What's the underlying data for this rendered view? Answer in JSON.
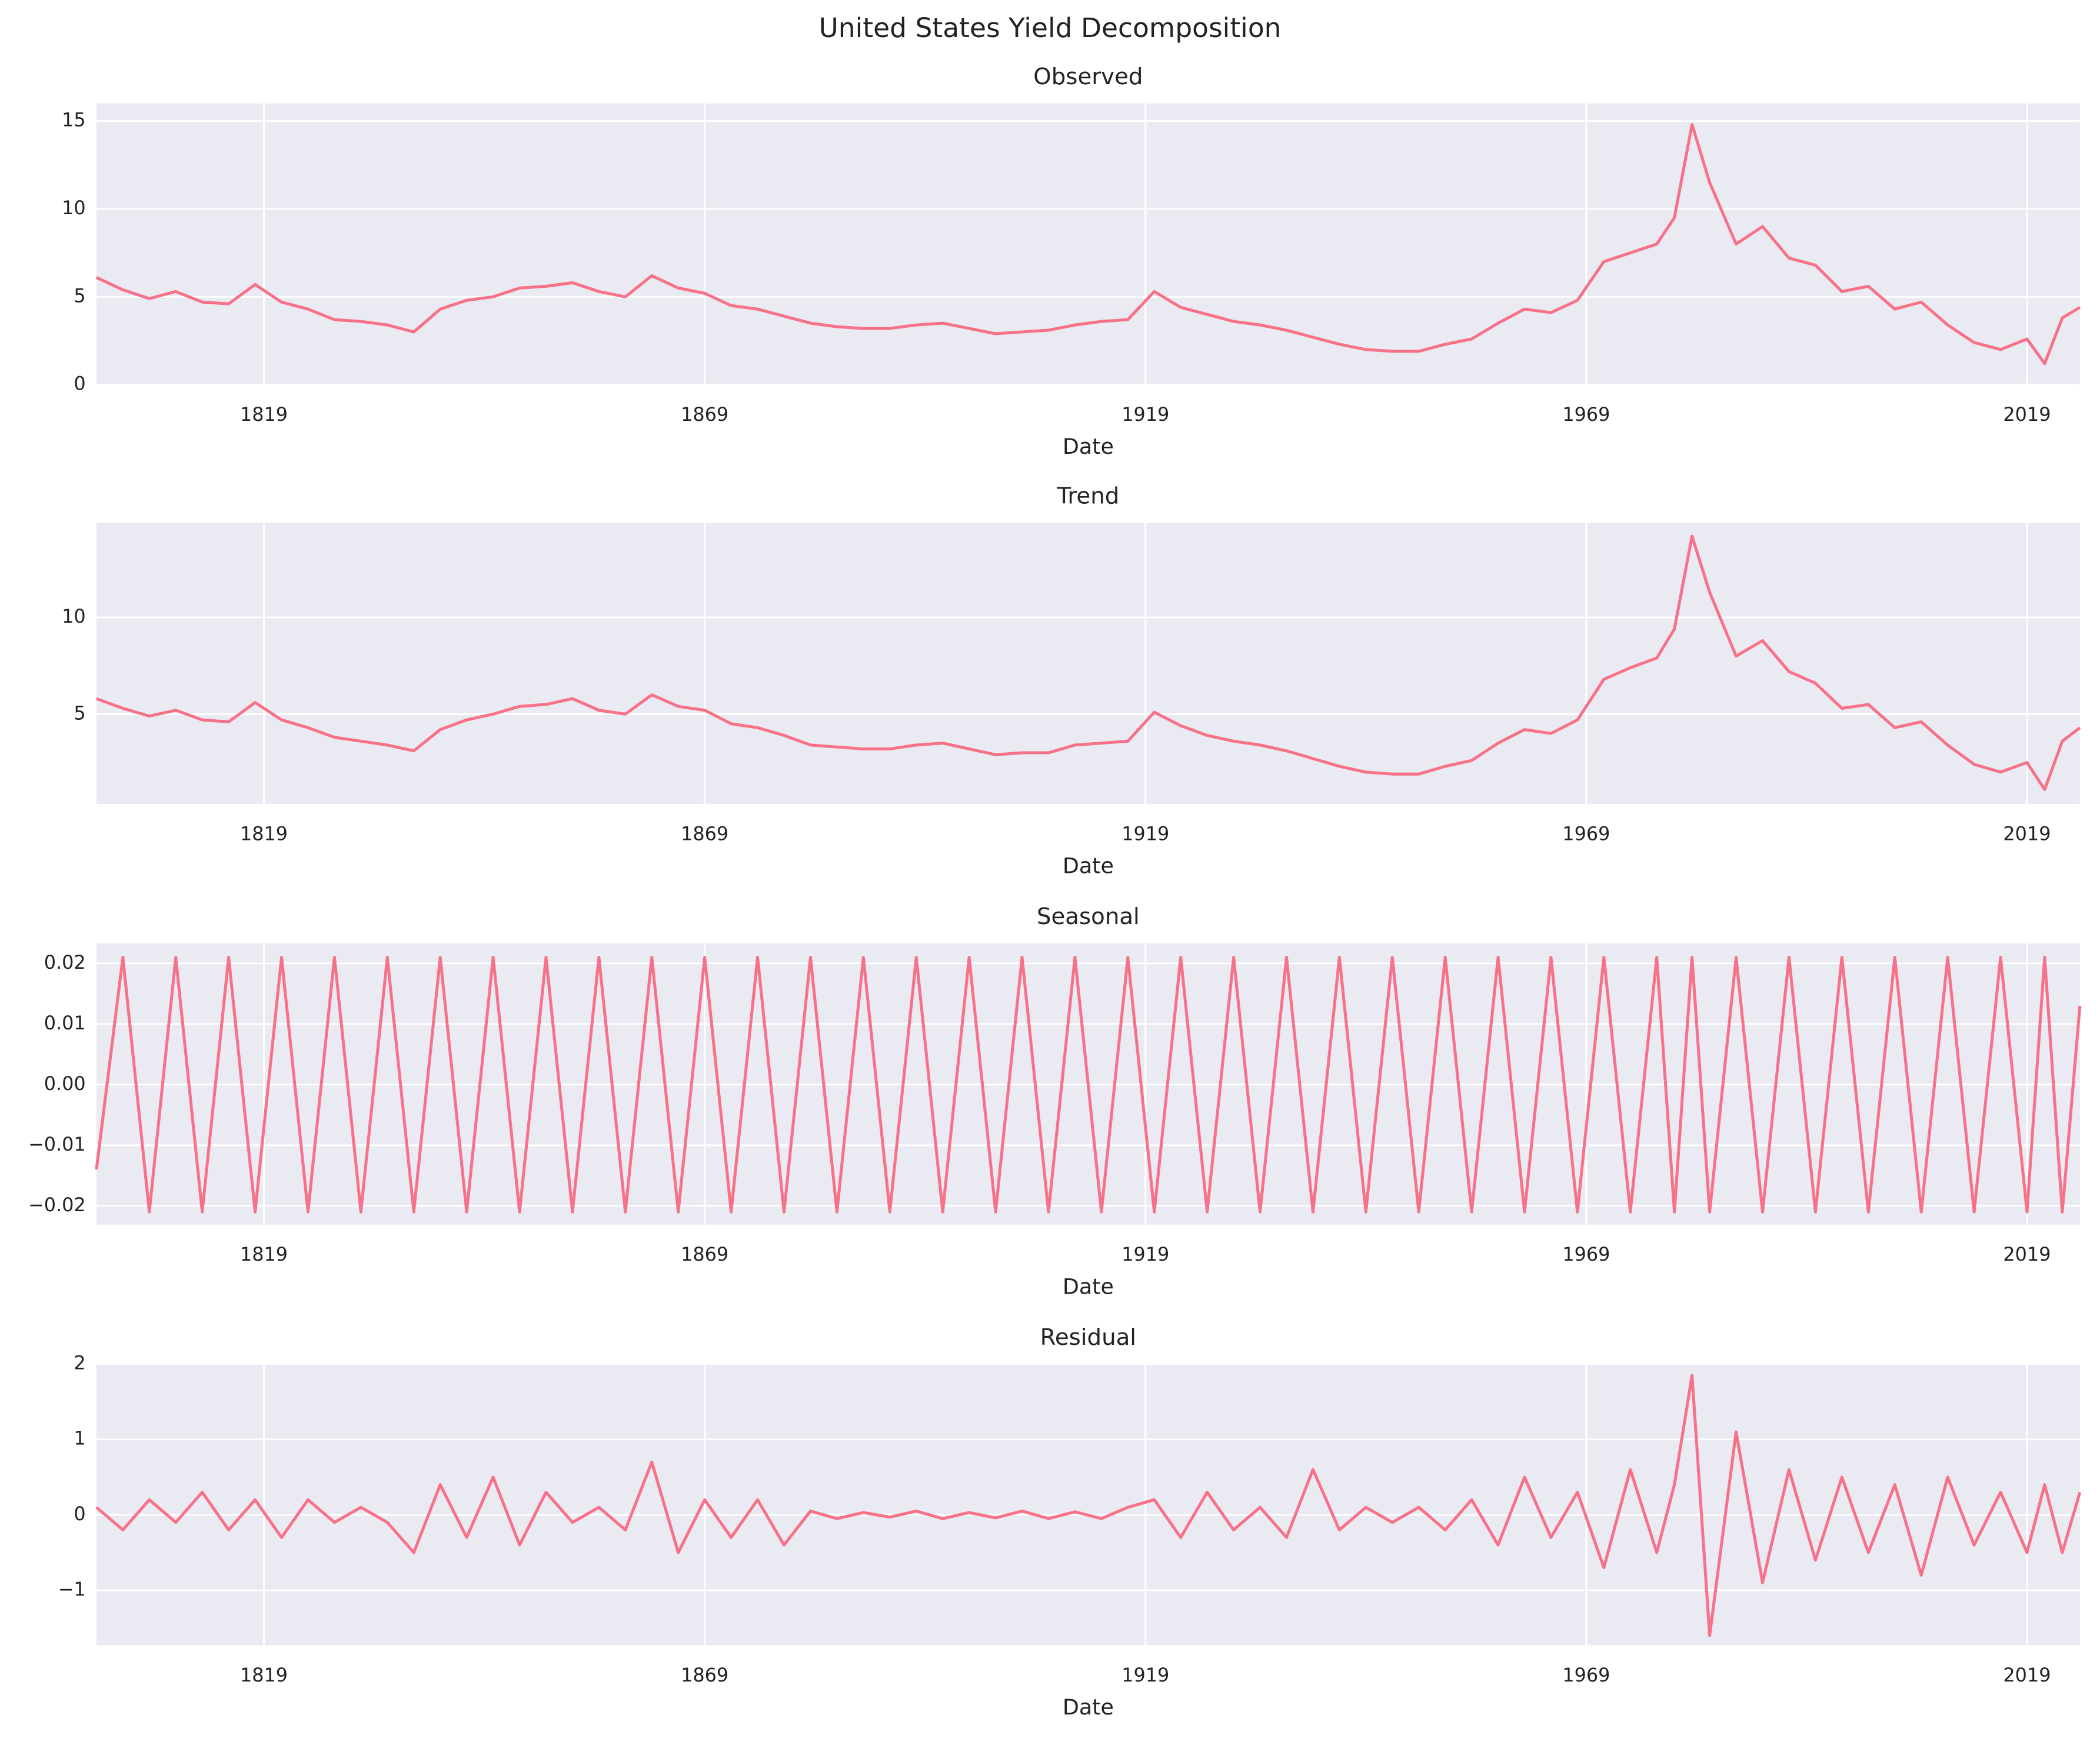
{
  "title": "United States Yield Decomposition",
  "chart_data": [
    {
      "type": "line",
      "title": "Observed",
      "xlabel": "Date",
      "color": "#f77189",
      "grid": true,
      "x": [
        1800,
        1803,
        1806,
        1809,
        1812,
        1815,
        1818,
        1821,
        1824,
        1827,
        1830,
        1833,
        1836,
        1839,
        1842,
        1845,
        1848,
        1851,
        1854,
        1857,
        1860,
        1863,
        1866,
        1869,
        1872,
        1875,
        1878,
        1881,
        1884,
        1887,
        1890,
        1893,
        1896,
        1899,
        1902,
        1905,
        1908,
        1911,
        1914,
        1917,
        1920,
        1923,
        1926,
        1929,
        1932,
        1935,
        1938,
        1941,
        1944,
        1947,
        1950,
        1953,
        1956,
        1959,
        1962,
        1965,
        1968,
        1971,
        1974,
        1977,
        1979,
        1981,
        1983,
        1986,
        1989,
        1992,
        1995,
        1998,
        2001,
        2004,
        2007,
        2010,
        2013,
        2016,
        2019,
        2021,
        2023,
        2025
      ],
      "values": [
        6.1,
        5.4,
        4.9,
        5.3,
        4.7,
        4.6,
        5.7,
        4.7,
        4.3,
        3.7,
        3.6,
        3.4,
        3.0,
        4.3,
        4.8,
        5.0,
        5.5,
        5.6,
        5.8,
        5.3,
        5.0,
        6.2,
        5.5,
        5.2,
        4.5,
        4.3,
        3.9,
        3.5,
        3.3,
        3.2,
        3.2,
        3.4,
        3.5,
        3.2,
        2.9,
        3.0,
        3.1,
        3.4,
        3.6,
        3.7,
        5.3,
        4.4,
        4.0,
        3.6,
        3.4,
        3.1,
        2.7,
        2.3,
        2.0,
        1.9,
        1.9,
        2.3,
        2.6,
        3.5,
        4.3,
        4.1,
        4.8,
        7.0,
        7.5,
        8.0,
        9.5,
        14.8,
        11.5,
        8.0,
        9.0,
        7.2,
        6.8,
        5.3,
        5.6,
        4.3,
        4.7,
        3.4,
        2.4,
        2.0,
        2.6,
        1.2,
        3.8,
        4.4
      ],
      "xlim": [
        1800,
        2025
      ],
      "xticks": [
        1819,
        1869,
        1919,
        1969,
        2019
      ],
      "ylim": [
        0,
        16
      ],
      "yticks": [
        0,
        5,
        10,
        15
      ]
    },
    {
      "type": "line",
      "title": "Trend",
      "xlabel": "Date",
      "color": "#f77189",
      "grid": true,
      "x": [
        1800,
        1803,
        1806,
        1809,
        1812,
        1815,
        1818,
        1821,
        1824,
        1827,
        1830,
        1833,
        1836,
        1839,
        1842,
        1845,
        1848,
        1851,
        1854,
        1857,
        1860,
        1863,
        1866,
        1869,
        1872,
        1875,
        1878,
        1881,
        1884,
        1887,
        1890,
        1893,
        1896,
        1899,
        1902,
        1905,
        1908,
        1911,
        1914,
        1917,
        1920,
        1923,
        1926,
        1929,
        1932,
        1935,
        1938,
        1941,
        1944,
        1947,
        1950,
        1953,
        1956,
        1959,
        1962,
        1965,
        1968,
        1971,
        1974,
        1977,
        1979,
        1981,
        1983,
        1986,
        1989,
        1992,
        1995,
        1998,
        2001,
        2004,
        2007,
        2010,
        2013,
        2016,
        2019,
        2021,
        2023,
        2025
      ],
      "values": [
        5.8,
        5.3,
        4.9,
        5.2,
        4.7,
        4.6,
        5.6,
        4.7,
        4.3,
        3.8,
        3.6,
        3.4,
        3.1,
        4.2,
        4.7,
        5.0,
        5.4,
        5.5,
        5.8,
        5.2,
        5.0,
        6.0,
        5.4,
        5.2,
        4.5,
        4.3,
        3.9,
        3.4,
        3.3,
        3.2,
        3.2,
        3.4,
        3.5,
        3.2,
        2.9,
        3.0,
        3.0,
        3.4,
        3.5,
        3.6,
        5.1,
        4.4,
        3.9,
        3.6,
        3.4,
        3.1,
        2.7,
        2.3,
        2.0,
        1.9,
        1.9,
        2.3,
        2.6,
        3.5,
        4.2,
        4.0,
        4.7,
        6.8,
        7.4,
        7.9,
        9.4,
        14.2,
        11.3,
        8.0,
        8.8,
        7.2,
        6.6,
        5.3,
        5.5,
        4.3,
        4.6,
        3.4,
        2.4,
        2.0,
        2.5,
        1.1,
        3.6,
        4.3
      ],
      "xlim": [
        1800,
        2025
      ],
      "xticks": [
        1819,
        1869,
        1919,
        1969,
        2019
      ],
      "ylim": [
        0.35,
        14.9
      ],
      "yticks": [
        5,
        10
      ]
    },
    {
      "type": "line",
      "title": "Seasonal",
      "xlabel": "Date",
      "color": "#f77189",
      "grid": true,
      "x": [
        1800,
        1803,
        1806,
        1809,
        1812,
        1815,
        1818,
        1821,
        1824,
        1827,
        1830,
        1833,
        1836,
        1839,
        1842,
        1845,
        1848,
        1851,
        1854,
        1857,
        1860,
        1863,
        1866,
        1869,
        1872,
        1875,
        1878,
        1881,
        1884,
        1887,
        1890,
        1893,
        1896,
        1899,
        1902,
        1905,
        1908,
        1911,
        1914,
        1917,
        1920,
        1923,
        1926,
        1929,
        1932,
        1935,
        1938,
        1941,
        1944,
        1947,
        1950,
        1953,
        1956,
        1959,
        1962,
        1965,
        1968,
        1971,
        1974,
        1977,
        1979,
        1981,
        1983,
        1986,
        1989,
        1992,
        1995,
        1998,
        2001,
        2004,
        2007,
        2010,
        2013,
        2016,
        2019,
        2021,
        2023,
        2025
      ],
      "values": [
        -0.014,
        0.021,
        -0.021,
        0.021,
        -0.021,
        0.021,
        -0.021,
        0.021,
        -0.021,
        0.021,
        -0.021,
        0.021,
        -0.021,
        0.021,
        -0.021,
        0.021,
        -0.021,
        0.021,
        -0.021,
        0.021,
        -0.021,
        0.021,
        -0.021,
        0.021,
        -0.021,
        0.021,
        -0.021,
        0.021,
        -0.021,
        0.021,
        -0.021,
        0.021,
        -0.021,
        0.021,
        -0.021,
        0.021,
        -0.021,
        0.021,
        -0.021,
        0.021,
        -0.021,
        0.021,
        -0.021,
        0.021,
        -0.021,
        0.021,
        -0.021,
        0.021,
        -0.021,
        0.021,
        -0.021,
        0.021,
        -0.021,
        0.021,
        -0.021,
        0.021,
        -0.021,
        0.021,
        -0.021,
        0.021,
        -0.021,
        0.021,
        -0.021,
        0.021,
        -0.021,
        0.021,
        -0.021,
        0.021,
        -0.021,
        0.021,
        -0.021,
        0.021,
        -0.021,
        0.021,
        -0.021,
        0.021,
        -0.021,
        0.013
      ],
      "xlim": [
        1800,
        2025
      ],
      "xticks": [
        1819,
        1869,
        1919,
        1969,
        2019
      ],
      "ylim": [
        -0.0231,
        0.0233
      ],
      "yticks": [
        {
          "value": -0.02,
          "label": "−0.02"
        },
        {
          "value": -0.01,
          "label": "−0.01"
        },
        {
          "value": 0,
          "label": "0.00"
        },
        {
          "value": 0.01,
          "label": "0.01"
        },
        {
          "value": 0.02,
          "label": "0.02"
        }
      ]
    },
    {
      "type": "line",
      "title": "Residual",
      "xlabel": "Date",
      "color": "#f77189",
      "grid": true,
      "x": [
        1800,
        1803,
        1806,
        1809,
        1812,
        1815,
        1818,
        1821,
        1824,
        1827,
        1830,
        1833,
        1836,
        1839,
        1842,
        1845,
        1848,
        1851,
        1854,
        1857,
        1860,
        1863,
        1866,
        1869,
        1872,
        1875,
        1878,
        1881,
        1884,
        1887,
        1890,
        1893,
        1896,
        1899,
        1902,
        1905,
        1908,
        1911,
        1914,
        1917,
        1920,
        1923,
        1926,
        1929,
        1932,
        1935,
        1938,
        1941,
        1944,
        1947,
        1950,
        1953,
        1956,
        1959,
        1962,
        1965,
        1968,
        1971,
        1974,
        1977,
        1979,
        1981,
        1983,
        1986,
        1989,
        1992,
        1995,
        1998,
        2001,
        2004,
        2007,
        2010,
        2013,
        2016,
        2019,
        2021,
        2023,
        2025
      ],
      "values": [
        0.1,
        -0.2,
        0.2,
        -0.1,
        0.3,
        -0.2,
        0.2,
        -0.3,
        0.2,
        -0.1,
        0.1,
        -0.1,
        -0.5,
        0.4,
        -0.3,
        0.5,
        -0.4,
        0.3,
        -0.1,
        0.1,
        -0.2,
        0.7,
        -0.5,
        0.2,
        -0.3,
        0.2,
        -0.4,
        0.05,
        -0.05,
        0.03,
        -0.03,
        0.05,
        -0.05,
        0.03,
        -0.04,
        0.05,
        -0.05,
        0.04,
        -0.05,
        0.1,
        0.2,
        -0.3,
        0.3,
        -0.2,
        0.1,
        -0.3,
        0.6,
        -0.2,
        0.1,
        -0.1,
        0.1,
        -0.2,
        0.2,
        -0.4,
        0.5,
        -0.3,
        0.3,
        -0.7,
        0.6,
        -0.5,
        0.4,
        1.85,
        -1.6,
        1.1,
        -0.9,
        0.6,
        -0.6,
        0.5,
        -0.5,
        0.4,
        -0.8,
        0.5,
        -0.4,
        0.3,
        -0.5,
        0.4,
        -0.5,
        0.3
      ],
      "xlim": [
        1800,
        2025
      ],
      "xticks": [
        1819,
        1869,
        1919,
        1969,
        2019
      ],
      "ylim": [
        -1.73,
        2.0
      ],
      "yticks": [
        {
          "value": -1,
          "label": "−1"
        },
        0,
        1,
        2
      ]
    }
  ]
}
